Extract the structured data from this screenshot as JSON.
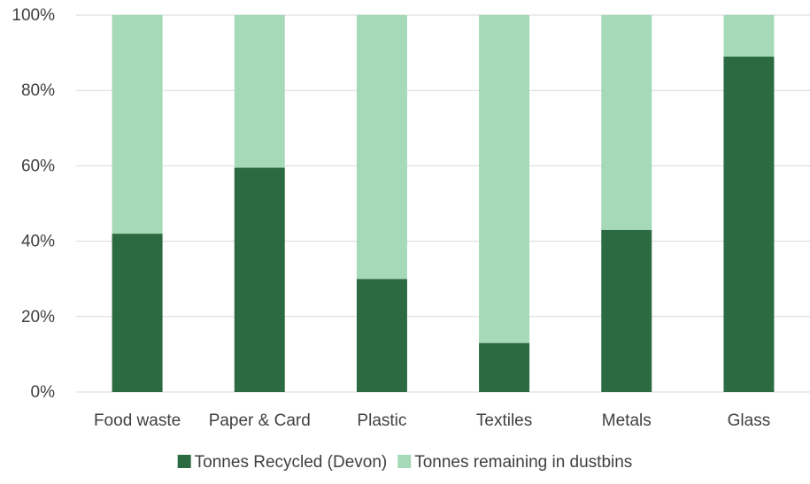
{
  "chart_data": {
    "type": "bar",
    "stacked": true,
    "percent": true,
    "categories": [
      "Food waste",
      "Paper & Card",
      "Plastic",
      "Textiles",
      "Metals",
      "Glass"
    ],
    "series": [
      {
        "name": "Tonnes Recycled (Devon)",
        "values": [
          42,
          59.5,
          30,
          13,
          43,
          89
        ],
        "color": "#2c6a42"
      },
      {
        "name": "Tonnes remaining in dustbins",
        "values": [
          58,
          40.5,
          70,
          87,
          57,
          11
        ],
        "color": "#a5d9b8"
      }
    ],
    "yticks": [
      "0%",
      "20%",
      "40%",
      "60%",
      "80%",
      "100%"
    ],
    "ylim": [
      0,
      100
    ],
    "grid": true,
    "legend_position": "bottom"
  }
}
